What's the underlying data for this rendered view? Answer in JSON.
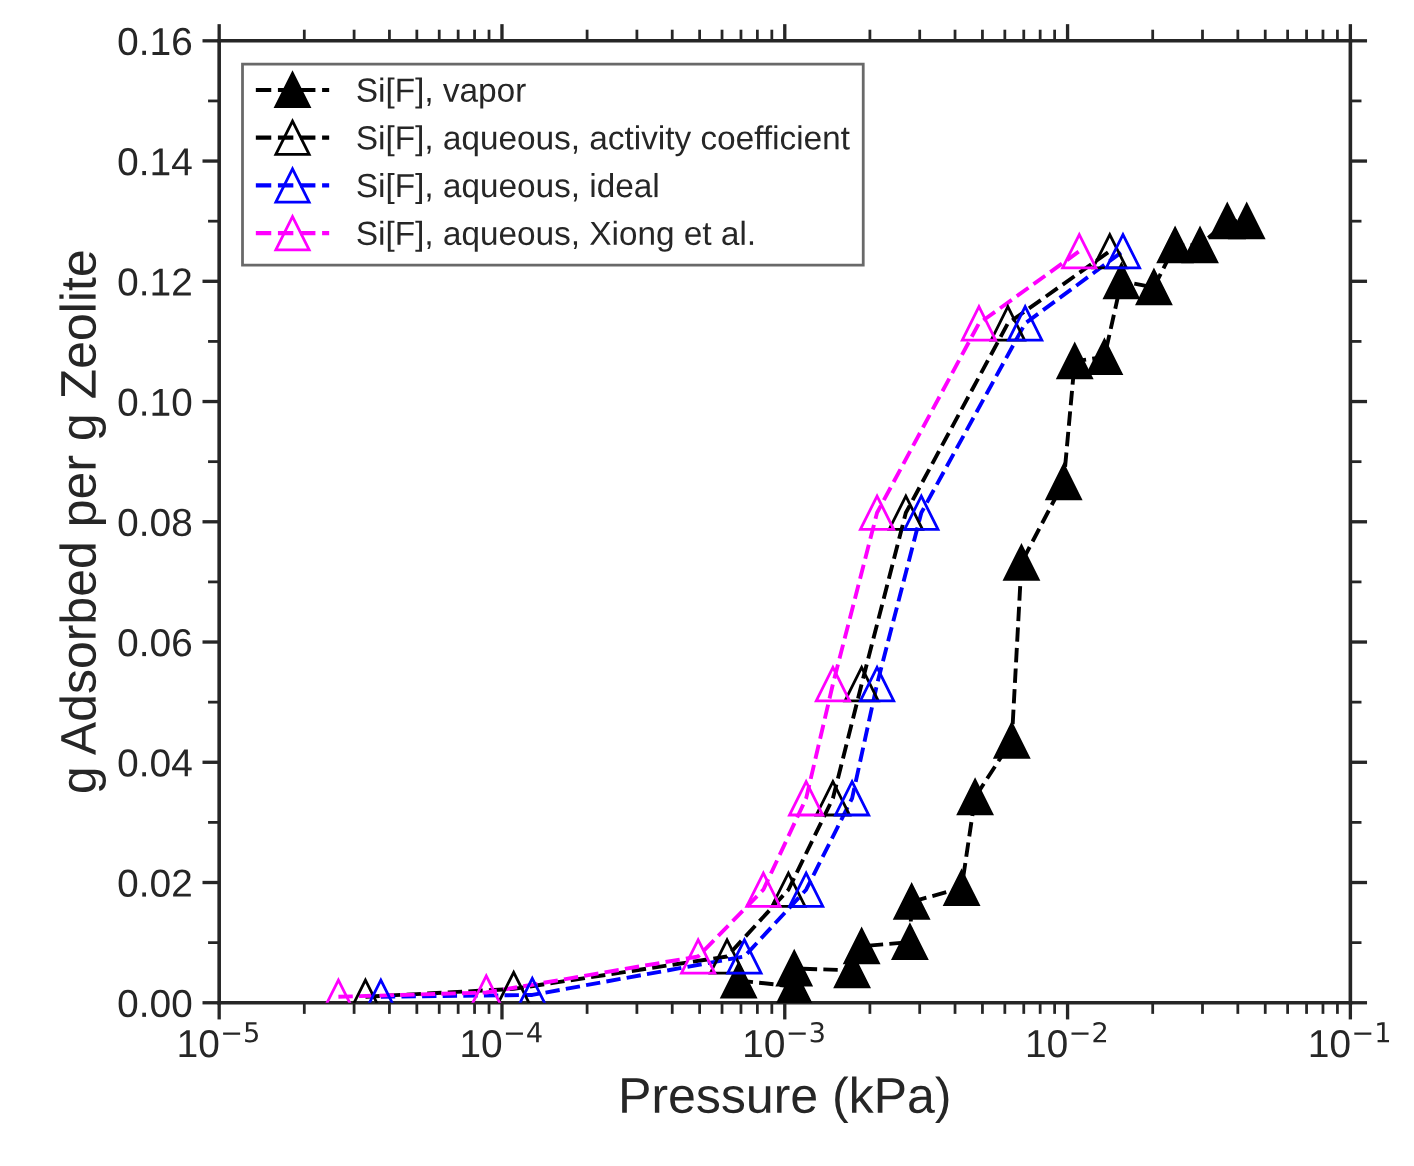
{
  "chart_data": {
    "type": "line",
    "xlabel": "Pressure (kPa)",
    "ylabel": "g Adsorbed per g Zeolite",
    "log": "x",
    "xlim": [
      1e-05,
      0.1
    ],
    "xticks": [
      {
        "value": 1e-05,
        "label": "10$^{−5}$"
      },
      {
        "value": 0.0001,
        "label": "10$^{−4}$"
      },
      {
        "value": 0.001,
        "label": "10$^{−3}$"
      },
      {
        "value": 0.01,
        "label": "10$^{−2}$"
      },
      {
        "value": 0.1,
        "label": "10$^{−1}$"
      }
    ],
    "ylim": [
      0,
      0.16
    ],
    "yticks": [
      {
        "value": 0,
        "label": "0.00"
      },
      {
        "value": 0.02,
        "label": "0.02"
      },
      {
        "value": 0.04,
        "label": "0.04"
      },
      {
        "value": 0.06,
        "label": "0.06"
      },
      {
        "value": 0.08,
        "label": "0.08"
      },
      {
        "value": 0.1,
        "label": "0.10"
      },
      {
        "value": 0.12,
        "label": "0.12"
      },
      {
        "value": 0.14,
        "label": "0.14"
      },
      {
        "value": 0.16,
        "label": "0.16"
      }
    ],
    "grid": false,
    "legend": "top left",
    "marker": "triangle",
    "line_style": "dashed",
    "series": [
      {
        "name": "Si[F], vapor",
        "color": "#000000",
        "x": [
          0.000687,
          0.00108,
          0.00108,
          0.00173,
          0.00187,
          0.00277,
          0.00281,
          0.00422,
          0.00471,
          0.00635,
          0.00687,
          0.00969,
          0.0106,
          0.0135,
          0.0155,
          0.0202,
          0.024,
          0.0294,
          0.0367,
          0.043
        ],
        "values": [
          0.0037,
          0.0027,
          0.0057,
          0.0054,
          0.0094,
          0.0101,
          0.0168,
          0.0191,
          0.0342,
          0.0436,
          0.0732,
          0.0866,
          0.1067,
          0.1074,
          0.12,
          0.119,
          0.126,
          0.126,
          0.13,
          0.13
        ]
      },
      {
        "name": "Si[F], aqueous, activity coefficient",
        "color": "#000000",
        "x": [
          3.29e-05,
          0.00011,
          0.000625,
          0.00103,
          0.00148,
          0.00187,
          0.00268,
          0.00615,
          0.0141
        ],
        "values": [
          0.001,
          0.0023,
          0.0077,
          0.0188,
          0.034,
          0.053,
          0.0815,
          0.113,
          0.125
        ]
      },
      {
        "name": "Si[F], aqueous, ideal",
        "color": "#0000ff",
        "x": [
          3.73e-05,
          0.000128,
          0.00072,
          0.00119,
          0.00173,
          0.00212,
          0.00304,
          0.00708,
          0.0157
        ],
        "values": [
          0.001,
          0.0013,
          0.0077,
          0.0188,
          0.034,
          0.053,
          0.0815,
          0.113,
          0.125
        ]
      },
      {
        "name": "Si[F], aqueous, Xiong et al.",
        "color": "#ff00ff",
        "x": [
          2.64e-05,
          8.8e-05,
          0.000494,
          0.00084,
          0.00119,
          0.00148,
          0.00212,
          0.00486,
          0.011
        ],
        "values": [
          0.001,
          0.0017,
          0.0077,
          0.0188,
          0.034,
          0.053,
          0.0815,
          0.113,
          0.125
        ]
      }
    ]
  }
}
